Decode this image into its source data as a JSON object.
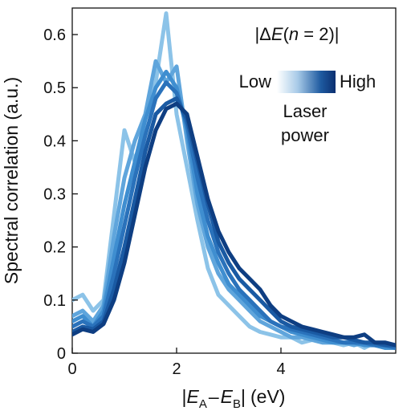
{
  "chart_data": {
    "type": "line",
    "title": "",
    "xlabel": "|E_A – E_B| (eV)",
    "xlabel_parts": {
      "open": "|",
      "e": "E",
      "sub_a": "A",
      "minus": "–",
      "sub_b": "B",
      "close": "|",
      "unit": "(eV)"
    },
    "ylabel": "Spectral correlation (a.u.)",
    "xlim": [
      0,
      6.2
    ],
    "ylim": [
      0,
      0.65
    ],
    "x_ticks": [
      0,
      2,
      4
    ],
    "y_ticks": [
      0,
      0.1,
      0.2,
      0.3,
      0.4,
      0.5,
      0.6
    ],
    "y_tick_labels": [
      "0",
      "0.1",
      "0.2",
      "0.3",
      "0.4",
      "0.5",
      "0.6"
    ],
    "x_tick_labels": [
      "0",
      "2",
      "4"
    ],
    "grid": false,
    "legend": {
      "title": "|ΔE(n = 2)|",
      "title_parts": {
        "open": "|Δ",
        "e": "E",
        "mid": "(",
        "n": "n",
        "rest": " = 2)|"
      },
      "low_label": "Low",
      "high_label": "High",
      "caption_line1": "Laser",
      "caption_line2": "power",
      "gradient_colors": [
        "#ffffff",
        "#a9cbe8",
        "#1e5aa0",
        "#0b2f70"
      ],
      "placement": "top-right"
    },
    "series": [
      {
        "color": "#8cc3e8",
        "x": [
          0,
          0.2,
          0.4,
          0.6,
          0.8,
          1.0,
          1.2,
          1.4,
          1.6,
          1.8,
          2.0,
          2.2,
          2.4,
          2.6,
          2.8,
          3.0,
          3.2,
          3.4,
          3.6,
          3.8,
          4.0,
          4.2,
          4.4,
          4.6,
          4.8,
          5.0,
          5.2,
          5.4,
          5.6,
          5.8,
          6.0,
          6.2
        ],
        "y": [
          0.1,
          0.11,
          0.08,
          0.1,
          0.26,
          0.42,
          0.36,
          0.44,
          0.51,
          0.64,
          0.45,
          0.35,
          0.25,
          0.16,
          0.11,
          0.09,
          0.07,
          0.05,
          0.04,
          0.035,
          0.03,
          0.03,
          0.02,
          0.025,
          0.02,
          0.02,
          0.015,
          0.02,
          0.01,
          0.02,
          0.015,
          0.01
        ]
      },
      {
        "color": "#5fa5dc",
        "x": [
          0,
          0.2,
          0.4,
          0.6,
          0.8,
          1.0,
          1.2,
          1.4,
          1.6,
          1.8,
          2.0,
          2.2,
          2.4,
          2.6,
          2.8,
          3.0,
          3.2,
          3.4,
          3.6,
          3.8,
          4.0,
          4.2,
          4.4,
          4.6,
          4.8,
          5.0,
          5.2,
          5.4,
          5.6,
          5.8,
          6.0,
          6.2
        ],
        "y": [
          0.07,
          0.08,
          0.06,
          0.09,
          0.22,
          0.33,
          0.4,
          0.45,
          0.55,
          0.51,
          0.54,
          0.4,
          0.28,
          0.2,
          0.15,
          0.12,
          0.1,
          0.08,
          0.06,
          0.05,
          0.04,
          0.03,
          0.03,
          0.025,
          0.02,
          0.02,
          0.02,
          0.015,
          0.02,
          0.015,
          0.01,
          0.01
        ]
      },
      {
        "color": "#3f8ed0",
        "x": [
          0,
          0.2,
          0.4,
          0.6,
          0.8,
          1.0,
          1.2,
          1.4,
          1.6,
          1.8,
          2.0,
          2.2,
          2.4,
          2.6,
          2.8,
          3.0,
          3.2,
          3.4,
          3.6,
          3.8,
          4.0,
          4.2,
          4.4,
          4.6,
          4.8,
          5.0,
          5.2,
          5.4,
          5.6,
          5.8,
          6.0,
          6.2
        ],
        "y": [
          0.06,
          0.07,
          0.05,
          0.08,
          0.18,
          0.28,
          0.36,
          0.44,
          0.5,
          0.53,
          0.5,
          0.42,
          0.3,
          0.22,
          0.17,
          0.13,
          0.11,
          0.09,
          0.07,
          0.06,
          0.05,
          0.04,
          0.035,
          0.03,
          0.025,
          0.02,
          0.02,
          0.02,
          0.015,
          0.015,
          0.01,
          0.01
        ]
      },
      {
        "color": "#2a72bb",
        "x": [
          0,
          0.2,
          0.4,
          0.6,
          0.8,
          1.0,
          1.2,
          1.4,
          1.6,
          1.8,
          2.0,
          2.2,
          2.4,
          2.6,
          2.8,
          3.0,
          3.2,
          3.4,
          3.6,
          3.8,
          4.0,
          4.2,
          4.4,
          4.6,
          4.8,
          5.0,
          5.2,
          5.4,
          5.6,
          5.8,
          6.0,
          6.2
        ],
        "y": [
          0.05,
          0.06,
          0.05,
          0.07,
          0.15,
          0.24,
          0.33,
          0.41,
          0.48,
          0.51,
          0.49,
          0.43,
          0.33,
          0.25,
          0.19,
          0.15,
          0.12,
          0.1,
          0.08,
          0.06,
          0.05,
          0.045,
          0.04,
          0.035,
          0.03,
          0.025,
          0.02,
          0.02,
          0.02,
          0.015,
          0.015,
          0.01
        ]
      },
      {
        "color": "#1a5aa3",
        "x": [
          0,
          0.2,
          0.4,
          0.6,
          0.8,
          1.0,
          1.2,
          1.4,
          1.6,
          1.8,
          2.0,
          2.2,
          2.4,
          2.6,
          2.8,
          3.0,
          3.2,
          3.4,
          3.6,
          3.8,
          4.0,
          4.2,
          4.4,
          4.6,
          4.8,
          5.0,
          5.2,
          5.4,
          5.6,
          5.8,
          6.0,
          6.2
        ],
        "y": [
          0.04,
          0.05,
          0.045,
          0.06,
          0.12,
          0.2,
          0.29,
          0.38,
          0.45,
          0.47,
          0.48,
          0.44,
          0.36,
          0.28,
          0.21,
          0.17,
          0.14,
          0.12,
          0.1,
          0.08,
          0.06,
          0.05,
          0.045,
          0.04,
          0.035,
          0.03,
          0.03,
          0.025,
          0.02,
          0.02,
          0.015,
          0.015
        ]
      },
      {
        "color": "#0e3e82",
        "x": [
          0,
          0.2,
          0.4,
          0.6,
          0.8,
          1.0,
          1.2,
          1.4,
          1.6,
          1.8,
          2.0,
          2.2,
          2.4,
          2.6,
          2.8,
          3.0,
          3.2,
          3.4,
          3.6,
          3.8,
          4.0,
          4.2,
          4.4,
          4.6,
          4.8,
          5.0,
          5.2,
          5.4,
          5.6,
          5.8,
          6.0,
          6.2
        ],
        "y": [
          0.035,
          0.045,
          0.04,
          0.055,
          0.1,
          0.17,
          0.26,
          0.35,
          0.42,
          0.46,
          0.47,
          0.45,
          0.37,
          0.29,
          0.23,
          0.19,
          0.16,
          0.14,
          0.12,
          0.09,
          0.07,
          0.06,
          0.05,
          0.045,
          0.04,
          0.035,
          0.03,
          0.03,
          0.035,
          0.02,
          0.02,
          0.015
        ]
      }
    ]
  }
}
